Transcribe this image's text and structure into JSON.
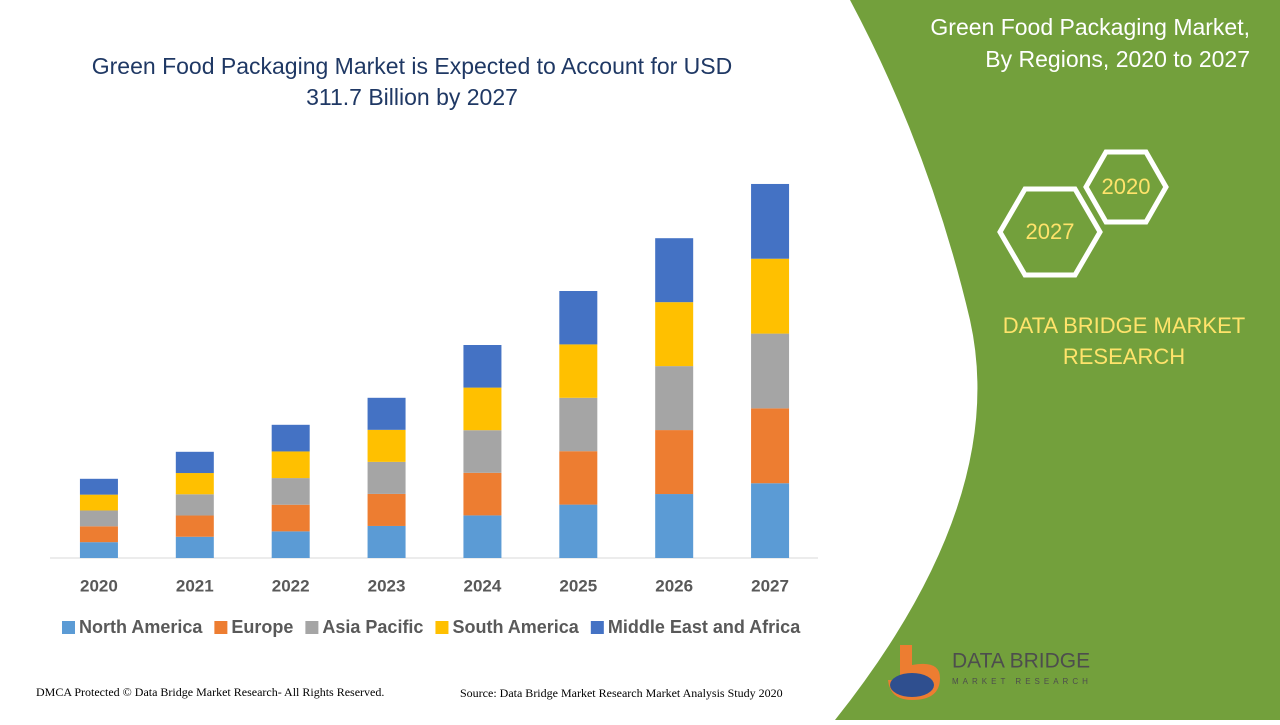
{
  "chart_data": {
    "type": "stacked_bar",
    "title_lines": [
      "Green Food Packaging Market is Expected to Account for USD",
      "311.7 Billion by 2027"
    ],
    "categories": [
      "2020",
      "2021",
      "2022",
      "2023",
      "2024",
      "2025",
      "2026",
      "2027"
    ],
    "series": [
      {
        "name": "North America",
        "color": "#5b9bd5",
        "values": [
          13.2,
          17.7,
          22.2,
          26.7,
          35.5,
          44.5,
          53.3,
          62.3
        ]
      },
      {
        "name": "Europe",
        "color": "#ed7d31",
        "values": [
          13.2,
          17.7,
          22.2,
          26.7,
          35.5,
          44.5,
          53.3,
          62.4
        ]
      },
      {
        "name": "Asia Pacific",
        "color": "#a5a5a5",
        "values": [
          13.2,
          17.7,
          22.2,
          26.7,
          35.5,
          44.5,
          53.3,
          62.3
        ]
      },
      {
        "name": "South America",
        "color": "#ffc000",
        "values": [
          13.2,
          17.7,
          22.2,
          26.7,
          35.5,
          44.5,
          53.3,
          62.4
        ]
      },
      {
        "name": "Middle East and Africa",
        "color": "#4472c4",
        "values": [
          13.2,
          17.7,
          22.2,
          26.7,
          35.5,
          44.5,
          53.3,
          62.3
        ]
      }
    ],
    "ylim": [
      0,
      320
    ],
    "legend": "bottom"
  },
  "panel": {
    "title_lines": [
      "Green Food Packaging Market,",
      "By Regions, 2020 to 2027"
    ],
    "hex_labels": [
      "2020",
      "2027"
    ],
    "brand_lines": [
      "DATA BRIDGE MARKET",
      "RESEARCH"
    ]
  },
  "logo": {
    "name": "DATA BRIDGE",
    "tagline": "MARKET RESEARCH"
  },
  "footer": {
    "dmca": "DMCA Protected © Data Bridge Market Research- All Rights Reserved.",
    "source": "Source: Data Bridge Market Research Market Analysis Study 2020"
  }
}
